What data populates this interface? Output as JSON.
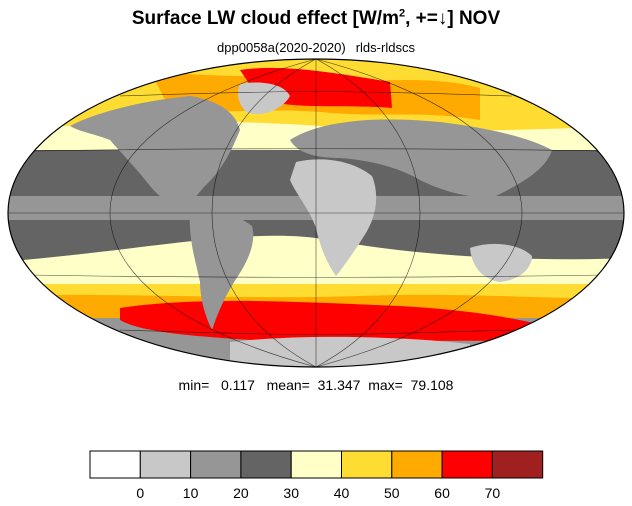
{
  "title": {
    "main": "Surface LW cloud effect [W/m",
    "sup": "2",
    "rest": ", +=↓]  NOV"
  },
  "subtitle": {
    "left": "dpp0058a(2020-2020)",
    "right": "rlds-rldscs"
  },
  "stats": {
    "min_label": "min=",
    "min": "0.117",
    "mean_label": "mean=",
    "mean": "31.347",
    "max_label": "max=",
    "max": "79.108"
  },
  "colorbar": {
    "ticks": [
      "0",
      "10",
      "20",
      "30",
      "40",
      "50",
      "60",
      "70"
    ],
    "colors": [
      "#ffffff",
      "#c8c8c8",
      "#969696",
      "#646464",
      "#ffffc8",
      "#ffdc32",
      "#ffaa00",
      "#ff0000",
      "#a02020"
    ]
  },
  "map_colors": {
    "ocean_tropical": "#646464",
    "ocean_subtropical": "#969696",
    "land_light": "#c8c8c8",
    "storm_yellow_pale": "#ffffc8",
    "storm_yellow": "#ffdc32",
    "storm_orange": "#ffaa00",
    "storm_red": "#ff0000"
  }
}
